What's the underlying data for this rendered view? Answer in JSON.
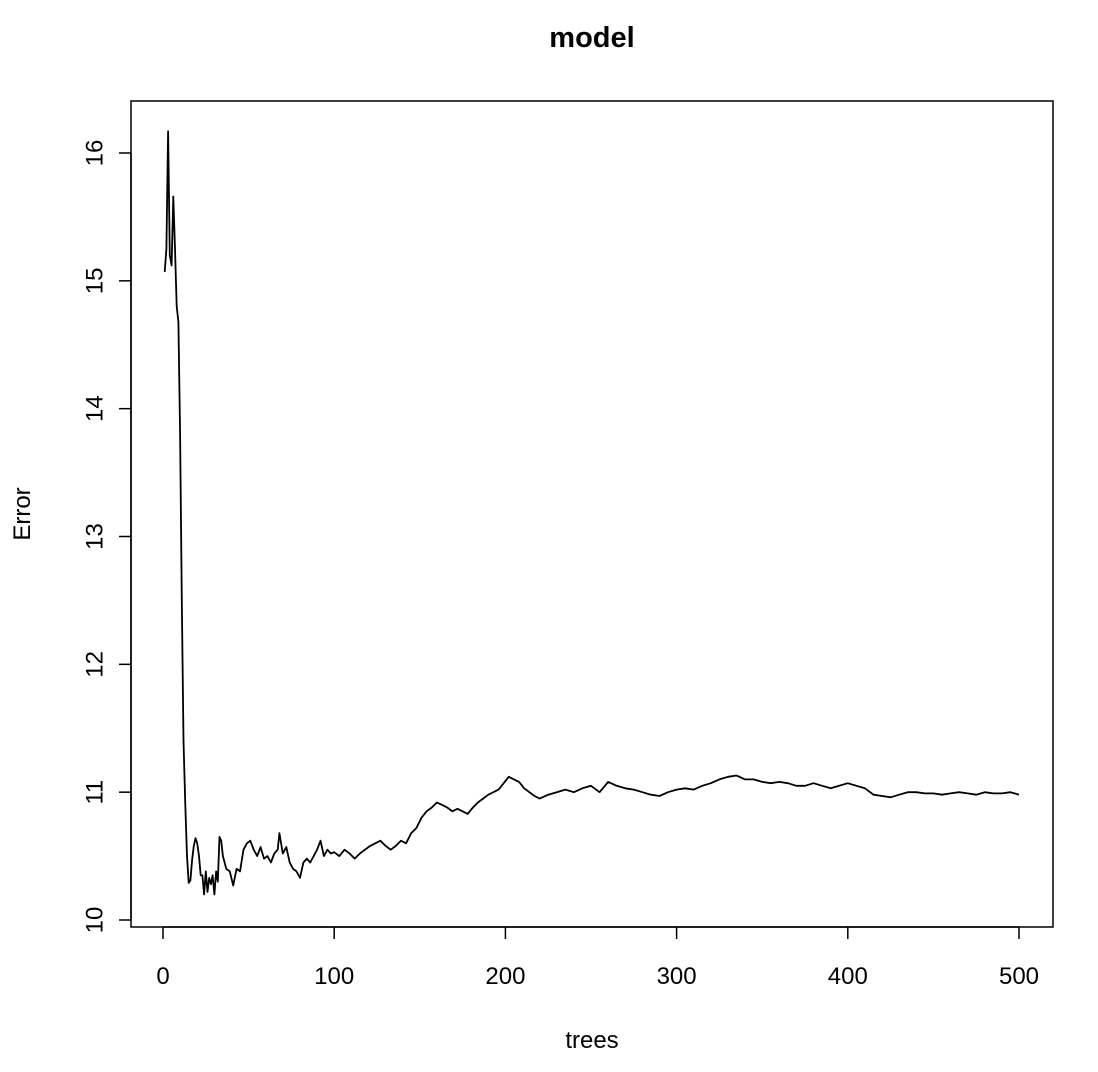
{
  "chart_data": {
    "type": "line",
    "title": "model",
    "xlabel": "trees",
    "ylabel": "Error",
    "xlim": [
      0,
      500
    ],
    "ylim": [
      10,
      16.2
    ],
    "xticks": [
      {
        "value": 0,
        "label": "0"
      },
      {
        "value": 100,
        "label": "100"
      },
      {
        "value": 200,
        "label": "200"
      },
      {
        "value": 300,
        "label": "300"
      },
      {
        "value": 400,
        "label": "400"
      },
      {
        "value": 500,
        "label": "500"
      }
    ],
    "yticks": [
      {
        "value": 10,
        "label": "10"
      },
      {
        "value": 11,
        "label": "11"
      },
      {
        "value": 12,
        "label": "12"
      },
      {
        "value": 13,
        "label": "13"
      },
      {
        "value": 14,
        "label": "14"
      },
      {
        "value": 15,
        "label": "15"
      },
      {
        "value": 16,
        "label": "16"
      }
    ],
    "grid": false,
    "legend": "none",
    "line_color": "#000000",
    "series": [
      {
        "x": [
          1,
          2,
          3,
          4,
          5,
          6,
          7,
          8,
          9,
          10,
          11,
          12,
          13,
          14,
          15,
          16,
          17,
          18,
          19,
          20,
          21,
          22,
          23,
          24,
          25,
          26,
          27,
          28,
          29,
          30,
          31,
          32,
          33,
          34,
          35,
          37,
          39,
          41,
          43,
          45,
          47,
          49,
          51,
          53,
          55,
          57,
          59,
          61,
          63,
          65,
          67,
          68,
          70,
          72,
          74,
          76,
          78,
          80,
          82,
          84,
          86,
          88,
          90,
          92,
          94,
          96,
          98,
          100,
          103,
          106,
          109,
          112,
          115,
          118,
          121,
          124,
          127,
          130,
          133,
          136,
          139,
          142,
          145,
          148,
          151,
          154,
          157,
          160,
          163,
          166,
          169,
          172,
          175,
          178,
          181,
          184,
          187,
          190,
          193,
          196,
          199,
          202,
          205,
          208,
          211,
          214,
          217,
          220,
          225,
          230,
          235,
          240,
          245,
          250,
          255,
          260,
          265,
          270,
          275,
          280,
          285,
          290,
          295,
          300,
          305,
          310,
          315,
          320,
          325,
          330,
          335,
          340,
          345,
          350,
          355,
          360,
          365,
          370,
          375,
          380,
          385,
          390,
          395,
          400,
          405,
          410,
          415,
          420,
          425,
          430,
          435,
          440,
          445,
          450,
          455,
          460,
          465,
          470,
          475,
          480,
          485,
          490,
          495,
          500
        ],
        "y": [
          15.07,
          15.25,
          16.17,
          15.2,
          15.12,
          15.66,
          15.25,
          14.8,
          14.68,
          13.8,
          12.5,
          11.4,
          10.9,
          10.5,
          10.29,
          10.31,
          10.47,
          10.58,
          10.64,
          10.6,
          10.5,
          10.35,
          10.35,
          10.2,
          10.38,
          10.22,
          10.33,
          10.28,
          10.35,
          10.2,
          10.38,
          10.3,
          10.65,
          10.62,
          10.5,
          10.4,
          10.38,
          10.27,
          10.4,
          10.38,
          10.55,
          10.6,
          10.62,
          10.55,
          10.5,
          10.57,
          10.48,
          10.5,
          10.45,
          10.52,
          10.55,
          10.68,
          10.52,
          10.57,
          10.45,
          10.4,
          10.38,
          10.33,
          10.45,
          10.48,
          10.45,
          10.5,
          10.55,
          10.62,
          10.5,
          10.55,
          10.52,
          10.53,
          10.5,
          10.55,
          10.52,
          10.48,
          10.52,
          10.55,
          10.58,
          10.6,
          10.62,
          10.58,
          10.55,
          10.58,
          10.62,
          10.6,
          10.68,
          10.72,
          10.8,
          10.85,
          10.88,
          10.92,
          10.9,
          10.88,
          10.85,
          10.87,
          10.85,
          10.83,
          10.88,
          10.92,
          10.95,
          10.98,
          11.0,
          11.02,
          11.07,
          11.12,
          11.1,
          11.08,
          11.03,
          11.0,
          10.97,
          10.95,
          10.98,
          11.0,
          11.02,
          11.0,
          11.03,
          11.05,
          11.0,
          11.08,
          11.05,
          11.03,
          11.02,
          11.0,
          10.98,
          10.97,
          11.0,
          11.02,
          11.03,
          11.02,
          11.05,
          11.07,
          11.1,
          11.12,
          11.13,
          11.1,
          11.1,
          11.08,
          11.07,
          11.08,
          11.07,
          11.05,
          11.05,
          11.07,
          11.05,
          11.03,
          11.05,
          11.07,
          11.05,
          11.03,
          10.98,
          10.97,
          10.96,
          10.98,
          11.0,
          11.0,
          10.99,
          10.99,
          10.98,
          10.99,
          11.0,
          10.99,
          10.98,
          11.0,
          10.99,
          10.99,
          11.0,
          10.98
        ]
      }
    ]
  }
}
